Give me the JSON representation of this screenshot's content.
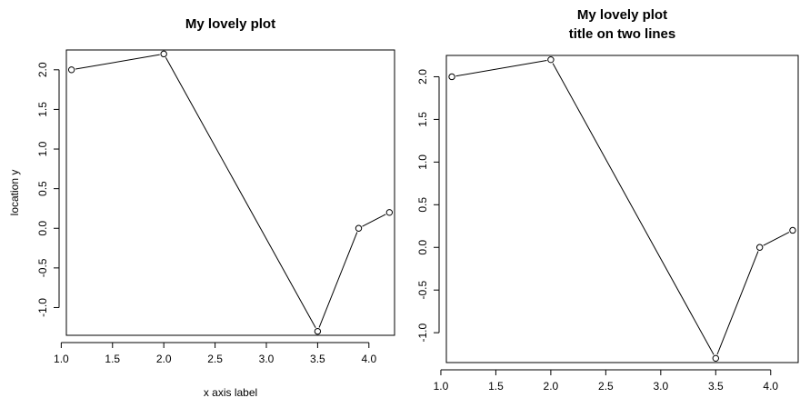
{
  "chart_data": [
    {
      "type": "line",
      "title": [
        "My lovely plot"
      ],
      "xlabel": "x axis label",
      "ylabel": "location y",
      "x": [
        1.1,
        2.0,
        3.5,
        3.9,
        4.2
      ],
      "y": [
        2.0,
        2.2,
        -1.3,
        0.0,
        0.2
      ],
      "xlim": [
        1.05,
        4.25
      ],
      "ylim": [
        -1.35,
        2.25
      ],
      "xticks": [
        1.0,
        1.5,
        2.0,
        2.5,
        3.0,
        3.5,
        4.0
      ],
      "xtick_labels": [
        "1.0",
        "1.5",
        "2.0",
        "2.5",
        "3.0",
        "3.5",
        "4.0"
      ],
      "yticks": [
        -1.0,
        -0.5,
        0.0,
        0.5,
        1.0,
        1.5,
        2.0
      ],
      "ytick_labels": [
        "-1.0",
        "-0.5",
        "0.0",
        "0.5",
        "1.0",
        "1.5",
        "2.0"
      ],
      "markers": "open-circle",
      "grid": false
    },
    {
      "type": "line",
      "title": [
        "My lovely plot",
        "title on two lines"
      ],
      "xlabel": "",
      "ylabel": "",
      "x": [
        1.1,
        2.0,
        3.5,
        3.9,
        4.2
      ],
      "y": [
        2.0,
        2.2,
        -1.3,
        0.0,
        0.2
      ],
      "xlim": [
        1.05,
        4.25
      ],
      "ylim": [
        -1.35,
        2.25
      ],
      "xticks": [
        1.0,
        1.5,
        2.0,
        2.5,
        3.0,
        3.5,
        4.0
      ],
      "xtick_labels": [
        "1.0",
        "1.5",
        "2.0",
        "2.5",
        "3.0",
        "3.5",
        "4.0"
      ],
      "yticks": [
        -1.0,
        -0.5,
        0.0,
        0.5,
        1.0,
        1.5,
        2.0
      ],
      "ytick_labels": [
        "-1.0",
        "-0.5",
        "0.0",
        "0.5",
        "1.0",
        "1.5",
        "2.0"
      ],
      "markers": "open-circle",
      "grid": false
    }
  ]
}
